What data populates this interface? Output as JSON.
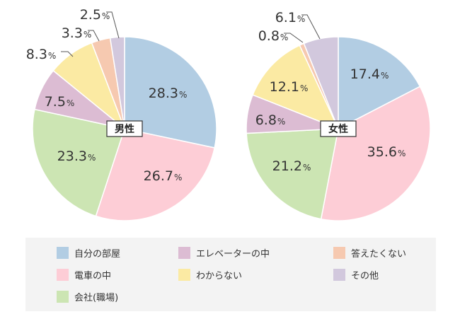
{
  "categories": [
    "自分の部屋",
    "電車の中",
    "会社(職場)",
    "エレベーターの中",
    "わからない",
    "答えたくない",
    "その他"
  ],
  "colors": {
    "自分の部屋": "#b2cde3",
    "電車の中": "#fdcdd6",
    "会社(職場)": "#cce5b3",
    "エレベーターの中": "#dcbcd3",
    "わからない": "#fbeaa3",
    "答えたくない": "#f6c9b0",
    "その他": "#d2c8dd"
  },
  "chart_data": [
    {
      "type": "pie",
      "title": "男性",
      "unit": "%",
      "categories": [
        "自分の部屋",
        "電車の中",
        "会社(職場)",
        "エレベーターの中",
        "わからない",
        "答えたくない",
        "その他"
      ],
      "values": [
        28.3,
        26.7,
        23.3,
        7.5,
        8.3,
        3.3,
        2.5
      ],
      "labels": [
        "28.3",
        "26.7",
        "23.3",
        "7.5",
        "8.3",
        "3.3",
        "2.5"
      ]
    },
    {
      "type": "pie",
      "title": "女性",
      "unit": "%",
      "categories": [
        "自分の部屋",
        "電車の中",
        "会社(職場)",
        "エレベーターの中",
        "わからない",
        "答えたくない",
        "その他"
      ],
      "values": [
        17.4,
        35.6,
        21.2,
        6.8,
        12.1,
        0.8,
        6.1
      ],
      "labels": [
        "17.4",
        "35.6",
        "21.2",
        "6.8",
        "12.1",
        "0.8",
        "6.1"
      ]
    }
  ],
  "legend": {
    "items": [
      {
        "label": "自分の部屋",
        "color": "#b2cde3"
      },
      {
        "label": "エレベーターの中",
        "color": "#dcbcd3"
      },
      {
        "label": "答えたくない",
        "color": "#f6c9b0"
      },
      {
        "label": "電車の中",
        "color": "#fdcdd6"
      },
      {
        "label": "わからない",
        "color": "#fbeaa3"
      },
      {
        "label": "その他",
        "color": "#d2c8dd"
      },
      {
        "label": "会社(職場)",
        "color": "#cce5b3"
      }
    ]
  }
}
